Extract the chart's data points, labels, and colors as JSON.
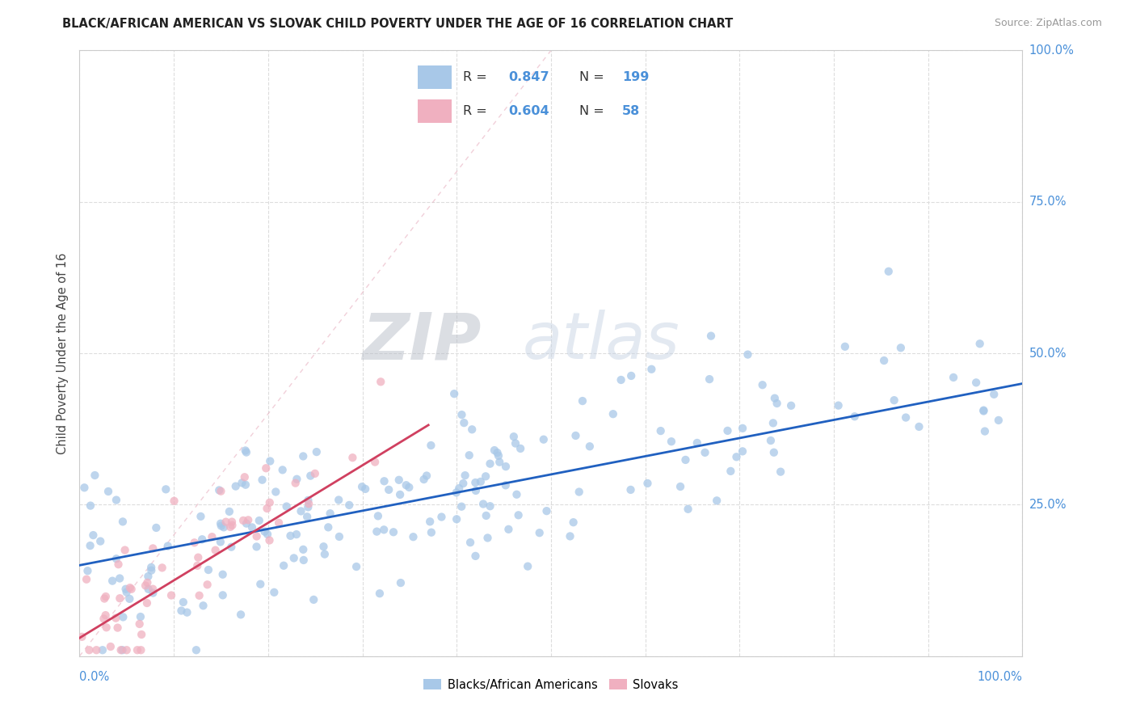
{
  "title": "BLACK/AFRICAN AMERICAN VS SLOVAK CHILD POVERTY UNDER THE AGE OF 16 CORRELATION CHART",
  "source": "Source: ZipAtlas.com",
  "ylabel": "Child Poverty Under the Age of 16",
  "legend_label1": "Blacks/African Americans",
  "legend_label2": "Slovaks",
  "R1": 0.847,
  "N1": 199,
  "R2": 0.604,
  "N2": 58,
  "color_blue": "#a8c8e8",
  "color_pink": "#f0b0c0",
  "color_line_blue": "#2060c0",
  "color_line_pink": "#d04060",
  "color_diag": "#f0b8c0",
  "watermark_zip": "#b0b8c8",
  "watermark_atlas": "#c0cce0",
  "background_color": "#ffffff",
  "seed": 42,
  "blue_slope": 0.3,
  "blue_intercept": 0.15,
  "pink_slope": 0.95,
  "pink_intercept": 0.03,
  "grid_color": "#dddddd",
  "tick_color": "#4a90d9",
  "axis_color": "#cccccc"
}
